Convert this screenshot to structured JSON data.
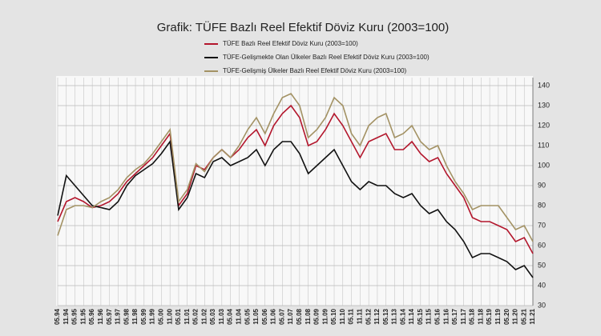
{
  "chart_data": {
    "type": "line",
    "title": "Grafik: TÜFE  Bazlı Reel Efektif Döviz Kuru (2003=100)",
    "categories": [
      "05.94",
      "11.94",
      "05.95",
      "11.95",
      "05.96",
      "11.96",
      "05.97",
      "11.97",
      "05.98",
      "11.98",
      "05.99",
      "11.99",
      "05.00",
      "11.00",
      "05.01",
      "11.01",
      "05.02",
      "11.02",
      "05.03",
      "11.03",
      "05.04",
      "11.04",
      "05.05",
      "11.05",
      "05.06",
      "11.06",
      "05.07",
      "11.07",
      "05.08",
      "11.08",
      "05.09",
      "11.09",
      "05.10",
      "11.10",
      "05.11",
      "11.11",
      "05.12",
      "11.12",
      "05.13",
      "11.13",
      "05.14",
      "11.14",
      "05.15",
      "11.15",
      "05.16",
      "11.16",
      "05.17",
      "11.17",
      "05.18",
      "11.18",
      "05.19",
      "11.19",
      "05.20",
      "11.20",
      "05.21",
      "11.21"
    ],
    "series": [
      {
        "name": "TÜFE  Bazlı Reel Efektif Döviz Kuru (2003=100)",
        "color": "#b3162c",
        "values": [
          72,
          82,
          84,
          82,
          79,
          80,
          82,
          86,
          92,
          96,
          100,
          104,
          110,
          116,
          80,
          86,
          100,
          98,
          104,
          108,
          104,
          108,
          114,
          118,
          110,
          120,
          126,
          130,
          124,
          110,
          112,
          118,
          126,
          120,
          112,
          104,
          112,
          114,
          116,
          108,
          108,
          112,
          106,
          102,
          104,
          96,
          90,
          84,
          74,
          72,
          72,
          70,
          68,
          62,
          64,
          56
        ]
      },
      {
        "name": "TÜFE-Gelişmekte Olan Ülkeler Bazlı Reel Efektif Döviz Kuru (2003=100)",
        "color": "#111111",
        "values": [
          75,
          95,
          90,
          85,
          80,
          79,
          78,
          82,
          90,
          95,
          98,
          101,
          106,
          112,
          78,
          84,
          96,
          94,
          102,
          104,
          100,
          102,
          104,
          108,
          100,
          108,
          112,
          112,
          106,
          96,
          100,
          104,
          108,
          100,
          92,
          88,
          92,
          90,
          90,
          86,
          84,
          86,
          80,
          76,
          78,
          72,
          68,
          62,
          54,
          56,
          56,
          54,
          52,
          48,
          50,
          44
        ]
      },
      {
        "name": "TÜFE-Gelişmiş Ülkeler Bazlı Reel Efektif Döviz Kuru (2003=100)",
        "color": "#a39264",
        "values": [
          65,
          78,
          80,
          80,
          79,
          82,
          84,
          88,
          94,
          98,
          101,
          106,
          112,
          118,
          82,
          88,
          101,
          97,
          104,
          108,
          104,
          110,
          118,
          124,
          116,
          126,
          134,
          136,
          130,
          114,
          118,
          124,
          134,
          130,
          116,
          110,
          120,
          124,
          126,
          114,
          116,
          120,
          112,
          108,
          110,
          100,
          92,
          86,
          78,
          80,
          80,
          80,
          74,
          68,
          70,
          62
        ]
      }
    ],
    "ylim": [
      30,
      140
    ],
    "yticks": [
      30,
      40,
      50,
      60,
      70,
      80,
      90,
      100,
      110,
      120,
      130,
      140
    ],
    "grid": true
  }
}
